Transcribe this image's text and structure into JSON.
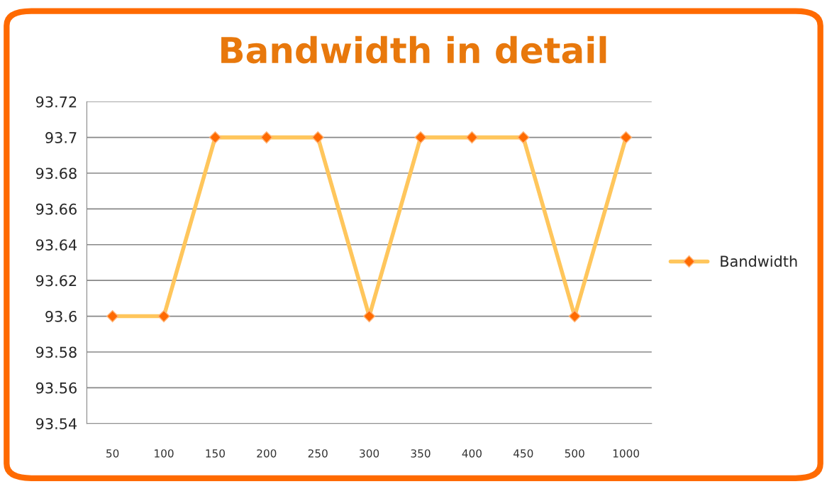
{
  "chart_data": {
    "type": "line",
    "title": "Bandwidth in detail",
    "categories": [
      "50",
      "100",
      "150",
      "200",
      "250",
      "300",
      "350",
      "400",
      "450",
      "500",
      "1000"
    ],
    "series": [
      {
        "name": "Bandwidth",
        "color": "#ffc65c",
        "values": [
          93.6,
          93.6,
          93.7,
          93.7,
          93.7,
          93.6,
          93.7,
          93.7,
          93.7,
          93.6,
          93.7
        ]
      }
    ],
    "ylim": [
      93.54,
      93.72
    ],
    "yticks": [
      93.54,
      93.56,
      93.58,
      93.6,
      93.62,
      93.64,
      93.66,
      93.68,
      93.7,
      93.72
    ],
    "grid": "y",
    "legend": "right",
    "marker": "diamond",
    "line_style": "solid"
  }
}
